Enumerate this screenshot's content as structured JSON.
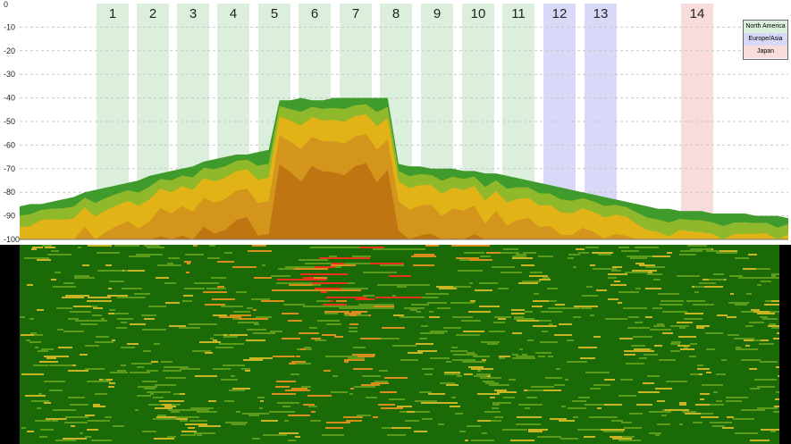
{
  "chart_data": {
    "type": "area",
    "title": "",
    "xlabel": "",
    "ylabel": "",
    "y_ticks": [
      "0",
      "-10",
      "-20",
      "-30",
      "-40",
      "-50",
      "-60",
      "-70",
      "-80",
      "-90",
      "-100"
    ],
    "ylim": [
      -100,
      0
    ],
    "grid": true,
    "legend_position": "top-right",
    "legend": [
      {
        "label": "North America",
        "color": "#dcefdc"
      },
      {
        "label": "Europe/Asia",
        "color": "#d8d8f8"
      },
      {
        "label": "Japan",
        "color": "#f8dcdc"
      }
    ],
    "channels": [
      {
        "label": "1",
        "region": "North America"
      },
      {
        "label": "2",
        "region": "North America"
      },
      {
        "label": "3",
        "region": "North America"
      },
      {
        "label": "4",
        "region": "North America"
      },
      {
        "label": "5",
        "region": "North America"
      },
      {
        "label": "6",
        "region": "North America"
      },
      {
        "label": "7",
        "region": "North America"
      },
      {
        "label": "8",
        "region": "North America"
      },
      {
        "label": "9",
        "region": "North America"
      },
      {
        "label": "10",
        "region": "North America"
      },
      {
        "label": "11",
        "region": "North America"
      },
      {
        "label": "12",
        "region": "Europe/Asia"
      },
      {
        "label": "13",
        "region": "Europe/Asia"
      },
      {
        "label": "14",
        "region": "Japan"
      }
    ],
    "series": [
      {
        "values": [
          -86,
          -85,
          -85,
          -84,
          -83,
          -82,
          -80,
          -79,
          -78,
          -77,
          -76,
          -75,
          -73,
          -72,
          -71,
          -70,
          -69,
          -67,
          -66,
          -65,
          -64,
          -64,
          -63,
          -62,
          -41,
          -41,
          -40,
          -41,
          -41,
          -40,
          -40,
          -40,
          -40,
          -40,
          -40,
          -68,
          -69,
          -69,
          -70,
          -70,
          -70,
          -71,
          -71,
          -72,
          -72,
          -73,
          -74,
          -75,
          -76,
          -77,
          -78,
          -79,
          -80,
          -81,
          -82,
          -83,
          -84,
          -85,
          -86,
          -87,
          -87,
          -88,
          -88,
          -88,
          -89,
          -89,
          -89,
          -89,
          -90,
          -90,
          -90,
          -91
        ]
      }
    ]
  }
}
